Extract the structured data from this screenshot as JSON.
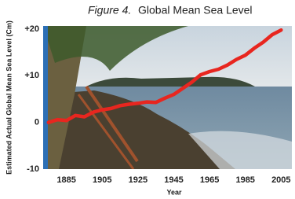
{
  "chart_data": {
    "type": "line",
    "figure_label": "Figure 4.",
    "title": "Global Mean Sea Level",
    "y_label": "Estimated Actual Global Mean Sea Level (Cm)",
    "x_label": "Year",
    "x": [
      1875,
      1880,
      1885,
      1890,
      1895,
      1900,
      1905,
      1910,
      1915,
      1920,
      1925,
      1930,
      1935,
      1940,
      1945,
      1950,
      1955,
      1960,
      1965,
      1970,
      1975,
      1980,
      1985,
      1990,
      1995,
      2000,
      2005
    ],
    "values": [
      0,
      0.6,
      0.4,
      1.5,
      1.2,
      2.2,
      2.7,
      3.0,
      3.6,
      3.9,
      4.1,
      4.4,
      4.3,
      5.2,
      6.0,
      7.3,
      8.6,
      10.2,
      10.9,
      11.4,
      12.3,
      13.5,
      14.4,
      15.9,
      17.2,
      18.8,
      19.8
    ],
    "color": "#e8261f",
    "xlim": [
      1872,
      2011
    ],
    "ylim": [
      -10,
      20
    ],
    "xticks": [
      1885,
      1905,
      1925,
      1945,
      1965,
      1985,
      2005
    ],
    "yticks": [
      {
        "value": 20,
        "label": "+20"
      },
      {
        "value": 10,
        "label": "+10"
      },
      0,
      -10
    ],
    "grid": false
  }
}
